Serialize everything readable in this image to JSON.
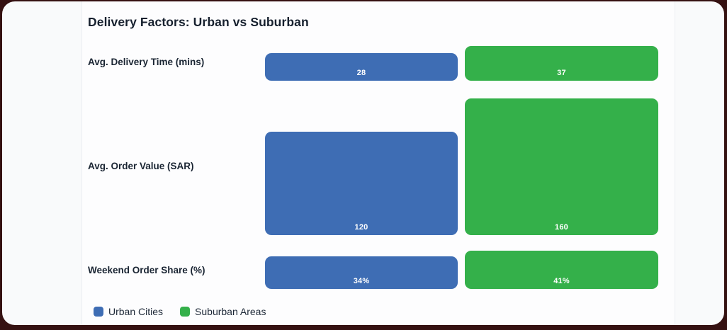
{
  "page": {
    "background_color": "#351111",
    "card_background": "#f9fafb",
    "panel_background": "#fdfdfe"
  },
  "chart_data": {
    "type": "bar",
    "title": "Delivery Factors: Urban vs Suburban",
    "categories": [
      "Avg. Delivery Time (mins)",
      "Avg. Order Value (SAR)",
      "Weekend Order Share (%)"
    ],
    "series": [
      {
        "name": "Urban Cities",
        "color": "#3e6db4",
        "values": [
          28,
          120,
          34
        ],
        "value_labels": [
          "28",
          "120",
          "34%"
        ]
      },
      {
        "name": "Suburban Areas",
        "color": "#34b04a",
        "values": [
          37,
          160,
          41
        ],
        "value_labels": [
          "37",
          "160",
          "41%"
        ]
      }
    ],
    "value_label_color": "#ffffff",
    "text_color": "#1a2533",
    "legend_position": "bottom",
    "grid": false,
    "axes_shown": false
  }
}
